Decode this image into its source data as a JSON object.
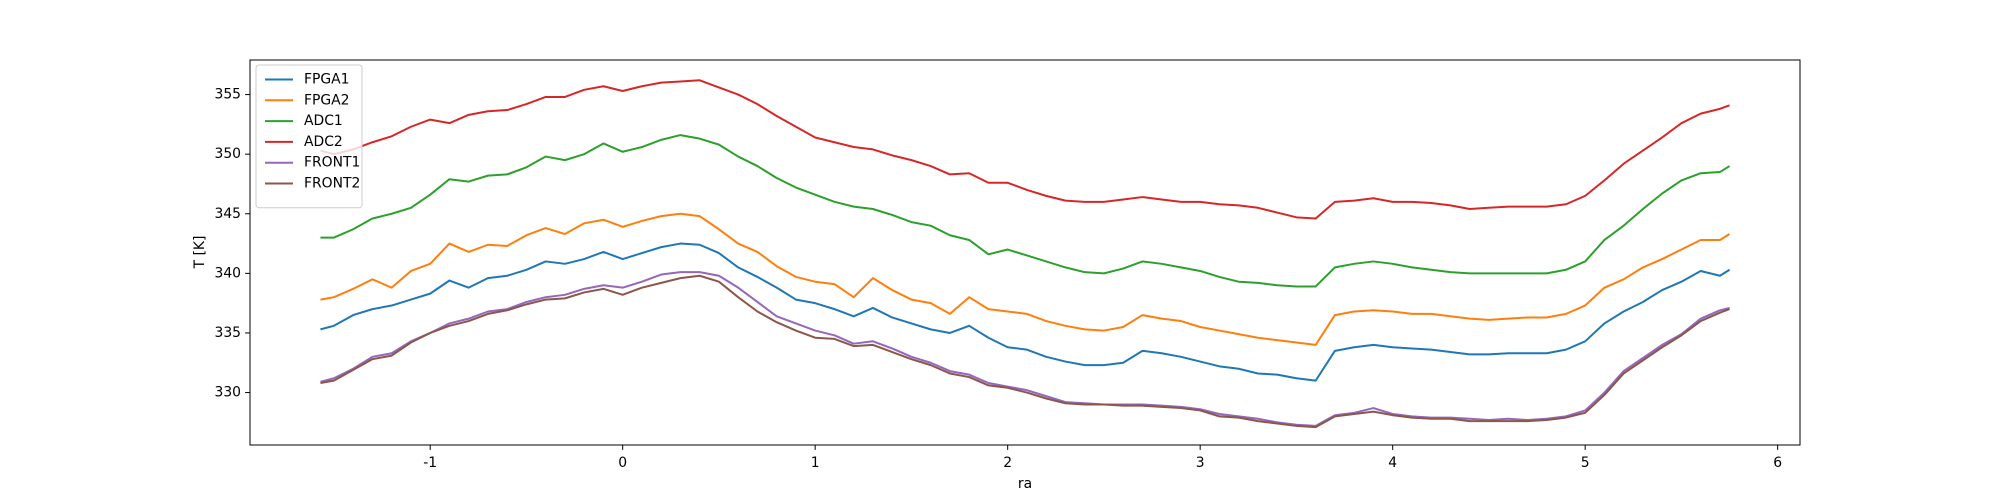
{
  "chart_data": {
    "type": "line",
    "xlabel": "ra",
    "ylabel": "T [K]",
    "xlim": [
      -1.936,
      6.116
    ],
    "xticks": [
      -1,
      0,
      1,
      2,
      3,
      4,
      5,
      6
    ],
    "ylim": [
      325.6,
      357.9
    ],
    "yticks": [
      330,
      335,
      340,
      345,
      350,
      355
    ],
    "grid": false,
    "legend": "upper-left",
    "x": [
      -1.57,
      -1.5,
      -1.4,
      -1.3,
      -1.2,
      -1.1,
      -1.0,
      -0.9,
      -0.8,
      -0.7,
      -0.6,
      -0.5,
      -0.4,
      -0.3,
      -0.2,
      -0.1,
      0,
      0.1,
      0.2,
      0.3,
      0.4,
      0.5,
      0.6,
      0.7,
      0.8,
      0.9,
      1.0,
      1.1,
      1.2,
      1.3,
      1.4,
      1.5,
      1.6,
      1.7,
      1.8,
      1.9,
      2.0,
      2.1,
      2.2,
      2.3,
      2.4,
      2.5,
      2.6,
      2.7,
      2.8,
      2.9,
      3.0,
      3.1,
      3.2,
      3.3,
      3.4,
      3.5,
      3.6,
      3.7,
      3.8,
      3.9,
      4.0,
      4.1,
      4.2,
      4.3,
      4.4,
      4.5,
      4.6,
      4.7,
      4.8,
      4.9,
      5.0,
      5.1,
      5.2,
      5.3,
      5.4,
      5.5,
      5.6,
      5.7,
      5.75
    ],
    "series": [
      {
        "name": "FPGA1",
        "color": "#1f77b4",
        "values": [
          335.3,
          335.6,
          336.5,
          337.0,
          337.3,
          337.8,
          338.3,
          339.4,
          338.8,
          339.6,
          339.8,
          340.3,
          341.0,
          340.8,
          341.2,
          341.8,
          341.2,
          341.7,
          342.2,
          342.5,
          342.4,
          341.7,
          340.5,
          339.7,
          338.8,
          337.8,
          337.5,
          337.0,
          336.4,
          337.1,
          336.3,
          335.8,
          335.3,
          335.0,
          335.6,
          334.6,
          333.8,
          333.6,
          333.0,
          332.6,
          332.3,
          332.3,
          332.5,
          333.5,
          333.3,
          333.0,
          332.6,
          332.2,
          332.0,
          331.6,
          331.5,
          331.2,
          331.0,
          333.5,
          333.8,
          334.0,
          333.8,
          333.7,
          333.6,
          333.4,
          333.2,
          333.2,
          333.3,
          333.3,
          333.3,
          333.6,
          334.3,
          335.8,
          336.8,
          337.6,
          338.6,
          339.3,
          340.2,
          339.8,
          340.3
        ]
      },
      {
        "name": "FPGA2",
        "color": "#ff7f0e",
        "values": [
          337.8,
          338.0,
          338.7,
          339.5,
          338.8,
          340.2,
          340.8,
          342.5,
          341.8,
          342.4,
          342.3,
          343.2,
          343.8,
          343.3,
          344.2,
          344.5,
          343.9,
          344.4,
          344.8,
          345.0,
          344.8,
          343.7,
          342.5,
          341.8,
          340.6,
          339.7,
          339.3,
          339.1,
          338.0,
          339.6,
          338.6,
          337.8,
          337.5,
          336.6,
          338.0,
          337.0,
          336.8,
          336.6,
          336.0,
          335.6,
          335.3,
          335.2,
          335.5,
          336.5,
          336.2,
          336.0,
          335.5,
          335.2,
          334.9,
          334.6,
          334.4,
          334.2,
          334.0,
          336.5,
          336.8,
          336.9,
          336.8,
          336.6,
          336.6,
          336.4,
          336.2,
          336.1,
          336.2,
          336.3,
          336.3,
          336.6,
          337.3,
          338.8,
          339.5,
          340.5,
          341.2,
          342.0,
          342.8,
          342.8,
          343.3
        ]
      },
      {
        "name": "ADC1",
        "color": "#2ca02c",
        "values": [
          343.0,
          343.0,
          343.7,
          344.6,
          345.0,
          345.5,
          346.6,
          347.9,
          347.7,
          348.2,
          348.3,
          348.9,
          349.8,
          349.5,
          350.0,
          350.9,
          350.2,
          350.6,
          351.2,
          351.6,
          351.3,
          350.8,
          349.8,
          349.0,
          348.0,
          347.2,
          346.6,
          346.0,
          345.6,
          345.4,
          344.9,
          344.3,
          344.0,
          343.2,
          342.8,
          341.6,
          342.0,
          341.5,
          341.0,
          340.5,
          340.1,
          340.0,
          340.4,
          341.0,
          340.8,
          340.5,
          340.2,
          339.7,
          339.3,
          339.2,
          339.0,
          338.9,
          338.9,
          340.5,
          340.8,
          341.0,
          340.8,
          340.5,
          340.3,
          340.1,
          340.0,
          340.0,
          340.0,
          340.0,
          340.0,
          340.3,
          341.0,
          342.8,
          344.0,
          345.4,
          346.7,
          347.8,
          348.4,
          348.5,
          349.0
        ]
      },
      {
        "name": "ADC2",
        "color": "#d62728",
        "values": [
          350.3,
          350.0,
          350.4,
          351.0,
          351.5,
          352.3,
          352.9,
          352.6,
          353.3,
          353.6,
          353.7,
          354.2,
          354.8,
          354.8,
          355.4,
          355.7,
          355.3,
          355.7,
          356.0,
          356.1,
          356.2,
          355.6,
          355.0,
          354.2,
          353.2,
          352.3,
          351.4,
          351.0,
          350.6,
          350.4,
          349.9,
          349.5,
          349.0,
          348.3,
          348.4,
          347.6,
          347.6,
          347.0,
          346.5,
          346.1,
          346.0,
          346.0,
          346.2,
          346.4,
          346.2,
          346.0,
          346.0,
          345.8,
          345.7,
          345.5,
          345.1,
          344.7,
          344.6,
          346.0,
          346.1,
          346.3,
          346.0,
          346.0,
          345.9,
          345.7,
          345.4,
          345.5,
          345.6,
          345.6,
          345.6,
          345.8,
          346.5,
          347.8,
          349.2,
          350.3,
          351.4,
          352.6,
          353.4,
          353.8,
          354.1
        ]
      },
      {
        "name": "FRONT1",
        "color": "#9467bd",
        "values": [
          330.9,
          331.2,
          332.0,
          333.0,
          333.3,
          334.3,
          335.0,
          335.8,
          336.2,
          336.8,
          337.0,
          337.6,
          338.0,
          338.2,
          338.7,
          339.0,
          338.8,
          339.3,
          339.9,
          340.1,
          340.1,
          339.8,
          338.8,
          337.6,
          336.4,
          335.8,
          335.2,
          334.8,
          334.1,
          334.3,
          333.7,
          333.0,
          332.5,
          331.8,
          331.5,
          330.8,
          330.5,
          330.2,
          329.7,
          329.2,
          329.1,
          329.0,
          329.0,
          329.0,
          328.9,
          328.8,
          328.6,
          328.2,
          328.0,
          327.8,
          327.5,
          327.3,
          327.2,
          328.1,
          328.3,
          328.7,
          328.2,
          328.0,
          327.9,
          327.9,
          327.8,
          327.7,
          327.8,
          327.7,
          327.8,
          328.0,
          328.5,
          330.0,
          331.8,
          332.9,
          334.0,
          334.9,
          336.2,
          336.9,
          337.1
        ]
      },
      {
        "name": "FRONT2",
        "color": "#8c564b",
        "values": [
          330.8,
          331.0,
          331.9,
          332.8,
          333.1,
          334.2,
          335.0,
          335.6,
          336.0,
          336.6,
          336.9,
          337.4,
          337.8,
          337.9,
          338.4,
          338.7,
          338.2,
          338.8,
          339.2,
          339.6,
          339.8,
          339.3,
          338.0,
          336.8,
          335.9,
          335.2,
          334.6,
          334.5,
          333.9,
          334.0,
          333.4,
          332.8,
          332.3,
          331.6,
          331.3,
          330.6,
          330.4,
          330.0,
          329.5,
          329.1,
          329.0,
          329.0,
          328.9,
          328.9,
          328.8,
          328.7,
          328.5,
          328.0,
          327.9,
          327.6,
          327.4,
          327.2,
          327.1,
          328.0,
          328.2,
          328.4,
          328.1,
          327.9,
          327.8,
          327.8,
          327.6,
          327.6,
          327.6,
          327.6,
          327.7,
          327.9,
          328.3,
          329.8,
          331.6,
          332.7,
          333.8,
          334.8,
          336.0,
          336.7,
          337.0
        ]
      }
    ]
  }
}
